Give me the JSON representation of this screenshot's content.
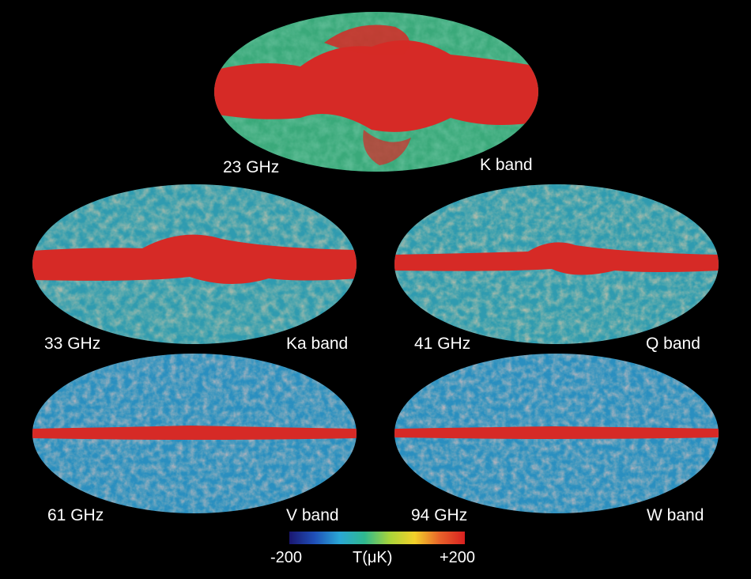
{
  "maps": [
    {
      "freq": "23 GHz",
      "band": "K band"
    },
    {
      "freq": "33 GHz",
      "band": "Ka band"
    },
    {
      "freq": "41 GHz",
      "band": "Q band"
    },
    {
      "freq": "61 GHz",
      "band": "V band"
    },
    {
      "freq": "94 GHz",
      "band": "W band"
    }
  ],
  "colorbar": {
    "min_label": "-200",
    "mid_label": "T(μK)",
    "max_label": "+200",
    "colors": [
      "#1a1670",
      "#1f4fb8",
      "#2aa7d6",
      "#2fb88f",
      "#a8d43a",
      "#f2d12a",
      "#e8632a",
      "#d92020"
    ]
  },
  "palette": {
    "background": "#000000",
    "galaxy_red": "#d62a26",
    "cmb_green": "#3aa97a",
    "cmb_blue": "#1f6fc0",
    "cmb_yellow": "#e8d23a"
  }
}
